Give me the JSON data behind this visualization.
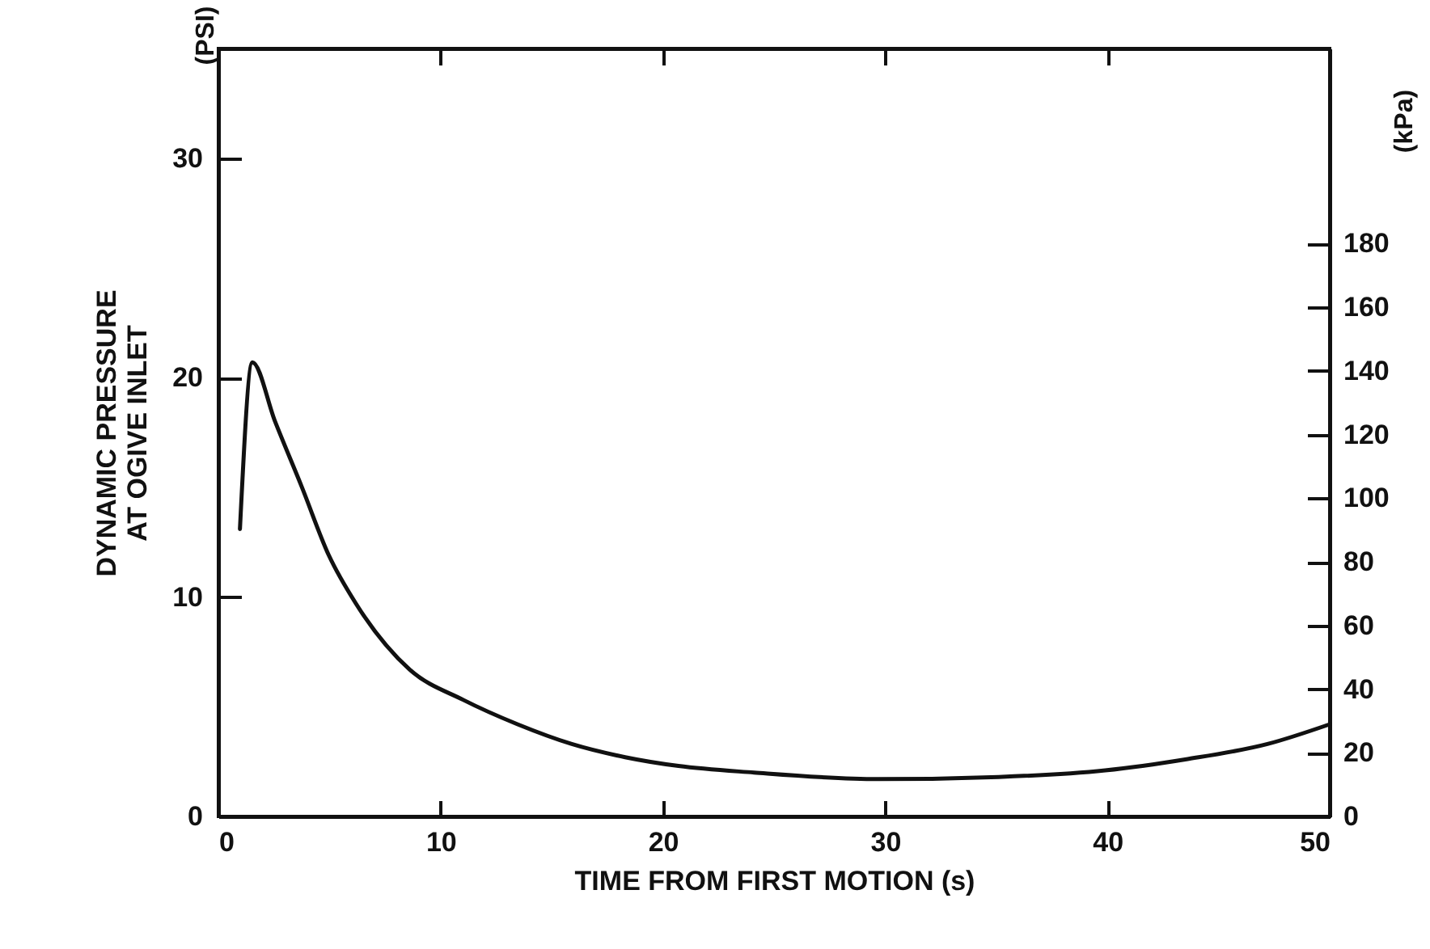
{
  "chart_data": {
    "type": "line",
    "xlabel": "TIME FROM FIRST MOTION (s)",
    "ylabel": "DYNAMIC PRESSURE AT OGIVE INLET",
    "y2label": "(kPa)",
    "annotations": [
      "(PSI)"
    ],
    "x": [
      0.97,
      1.53,
      2.55,
      3.76,
      4.97,
      6.19,
      8.6,
      11.04,
      13.46,
      15.9,
      18.3,
      20.7,
      24.1,
      29.7,
      35.1,
      39.9,
      43.5,
      47.2,
      50
    ],
    "series": [
      {
        "color": "#111111",
        "values": [
          13.1,
          20.7,
          18.0,
          15.0,
          11.9,
          9.7,
          6.7,
          5.3,
          4.2,
          3.3,
          2.7,
          2.3,
          2.0,
          1.7,
          1.8,
          2.1,
          2.6,
          3.3,
          4.2
        ]
      }
    ],
    "xlim": [
      0,
      50
    ],
    "xticks": [
      0,
      10,
      20,
      30,
      40,
      50
    ],
    "ylim": [
      0,
      35
    ],
    "yticks": [
      0,
      10,
      20,
      30
    ],
    "y2lim": [
      0,
      241.3
    ],
    "y2ticks": [
      0,
      20,
      40,
      60,
      80,
      100,
      120,
      140,
      160,
      180
    ],
    "grid": false,
    "marker": "none",
    "line_style": "solid"
  }
}
